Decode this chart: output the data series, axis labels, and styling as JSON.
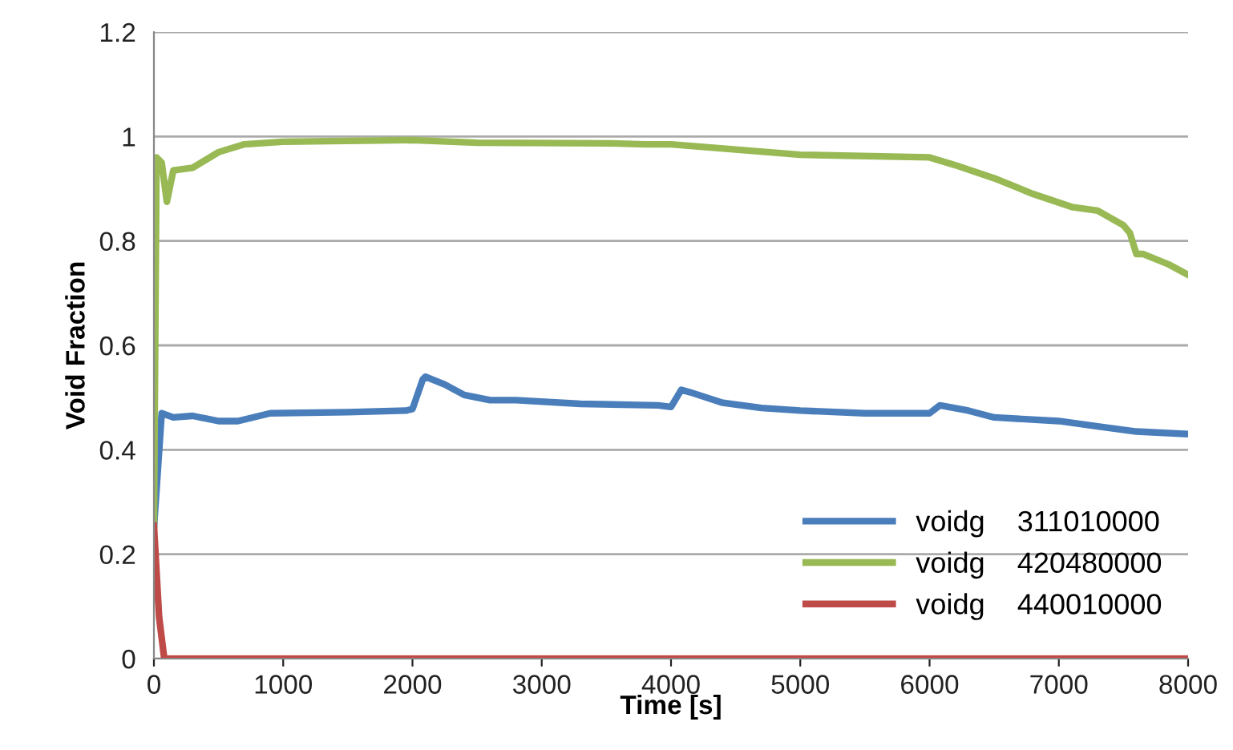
{
  "chart_data": {
    "type": "line",
    "xlabel": "Time [s]",
    "ylabel": "Void Fraction",
    "xlim": [
      0,
      8000
    ],
    "xticks": [
      0,
      1000,
      2000,
      3000,
      4000,
      5000,
      6000,
      7000,
      8000
    ],
    "ylim": [
      0,
      1.2
    ],
    "yticks": [
      0,
      0.2,
      0.4,
      0.6,
      0.8,
      1,
      1.2
    ],
    "grid": "y",
    "legend": "bottom right",
    "marker": "none",
    "line_style": "solid",
    "series": [
      {
        "name": "voidg    311010000",
        "color": "#4a7ebb",
        "x": [
          0,
          60,
          150,
          300,
          500,
          650,
          900,
          1500,
          1950,
          2000,
          2080,
          2100,
          2250,
          2400,
          2600,
          2800,
          3300,
          3900,
          4000,
          4080,
          4150,
          4400,
          4700,
          5000,
          5500,
          6000,
          6080,
          6300,
          6500,
          7000,
          7300,
          7600,
          8000
        ],
        "values": [
          0.25,
          0.47,
          0.462,
          0.465,
          0.455,
          0.455,
          0.47,
          0.472,
          0.475,
          0.478,
          0.535,
          0.54,
          0.525,
          0.505,
          0.495,
          0.495,
          0.488,
          0.485,
          0.482,
          0.515,
          0.51,
          0.49,
          0.48,
          0.475,
          0.47,
          0.47,
          0.485,
          0.475,
          0.462,
          0.455,
          0.445,
          0.435,
          0.43
        ]
      },
      {
        "name": "voidg    420480000",
        "color": "#98b954",
        "x": [
          0,
          20,
          60,
          100,
          150,
          300,
          500,
          700,
          1000,
          2000,
          2500,
          3500,
          3800,
          4000,
          4500,
          5000,
          6000,
          6200,
          6500,
          6800,
          7100,
          7300,
          7500,
          7550,
          7600,
          7650,
          7850,
          8000
        ],
        "values": [
          0.25,
          0.96,
          0.95,
          0.875,
          0.935,
          0.94,
          0.97,
          0.985,
          0.99,
          0.993,
          0.988,
          0.987,
          0.985,
          0.985,
          0.975,
          0.965,
          0.96,
          0.945,
          0.92,
          0.89,
          0.865,
          0.858,
          0.83,
          0.815,
          0.775,
          0.775,
          0.755,
          0.735
        ]
      },
      {
        "name": "voidg    440010000",
        "color": "#be4b48",
        "x": [
          0,
          40,
          80,
          8000
        ],
        "values": [
          0.255,
          0.08,
          0,
          0
        ]
      }
    ]
  }
}
